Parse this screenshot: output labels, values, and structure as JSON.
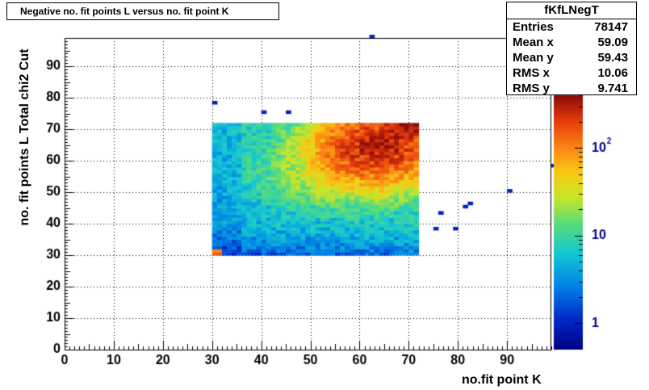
{
  "title": "Negative no. fit points L versus no. fit point K",
  "stats": {
    "name": "fKfLNegT",
    "rows": [
      {
        "label": "Entries",
        "value": "78147"
      },
      {
        "label": "Mean x",
        "value": "59.09"
      },
      {
        "label": "Mean y",
        "value": "59.43"
      },
      {
        "label": "RMS x",
        "value": "10.06"
      },
      {
        "label": "RMS y",
        "value": "9.741"
      }
    ]
  },
  "chart_data": {
    "type": "heatmap",
    "title": "Negative no. fit points L versus no. fit point K",
    "xlabel": "no.fit point K",
    "ylabel": "no. fit points  L  Total chi2 Cut",
    "xlim": [
      0,
      99
    ],
    "ylim": [
      0,
      99
    ],
    "xticks": [
      0,
      10,
      20,
      30,
      40,
      50,
      60,
      70,
      80,
      90
    ],
    "yticks": [
      0,
      10,
      20,
      30,
      40,
      50,
      60,
      70,
      80,
      90
    ],
    "grid": true,
    "z_scale": "log",
    "zlim": [
      0.5,
      400
    ],
    "colorbar_ticks": [
      {
        "value": 1,
        "label": "1"
      },
      {
        "value": 10,
        "label": "10"
      },
      {
        "value": 100,
        "label": "10^2"
      }
    ],
    "main_region": {
      "x": [
        30,
        72
      ],
      "y": [
        30,
        72
      ],
      "bin_width": 1
    },
    "peak": {
      "x": 63,
      "y": 64,
      "approx_count": 280
    },
    "secondary_peak": {
      "x": 70,
      "y": 71,
      "approx_count": 300
    },
    "low_corner_hotspot": {
      "x": [
        30,
        32
      ],
      "y": [
        30,
        32
      ],
      "approx_count": 120
    },
    "isolated_bins": [
      {
        "x": 62,
        "y": 99,
        "count": 1
      },
      {
        "x": 30,
        "y": 78,
        "count": 1
      },
      {
        "x": 40,
        "y": 75,
        "count": 1
      },
      {
        "x": 45,
        "y": 75,
        "count": 1
      },
      {
        "x": 99,
        "y": 58,
        "count": 1
      },
      {
        "x": 90,
        "y": 50,
        "count": 1
      },
      {
        "x": 76,
        "y": 43,
        "count": 1
      },
      {
        "x": 81,
        "y": 45,
        "count": 1
      },
      {
        "x": 82,
        "y": 46,
        "count": 1
      },
      {
        "x": 75,
        "y": 38,
        "count": 1
      },
      {
        "x": 79,
        "y": 38,
        "count": 1
      }
    ]
  }
}
